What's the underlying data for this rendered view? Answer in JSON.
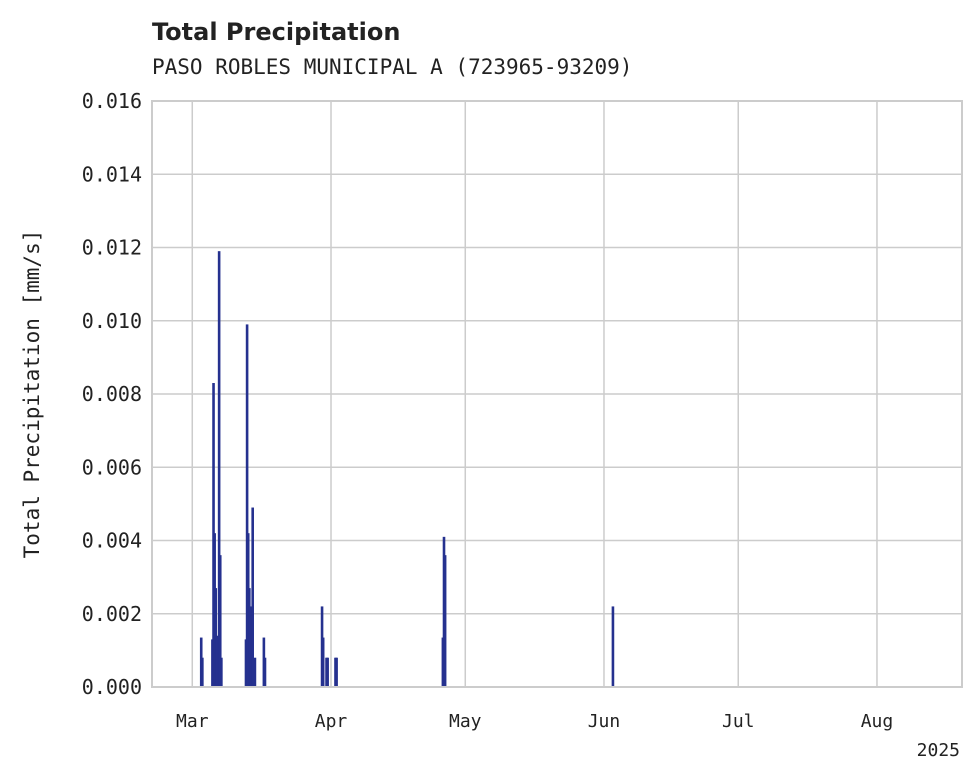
{
  "chart_data": {
    "type": "bar",
    "title": "Total Precipitation",
    "subtitle": "PASO ROBLES MUNICIPAL A (723965-93209)",
    "ylabel": "Total Precipitation [mm/s]",
    "xlabel": "",
    "ylim": [
      0,
      0.016
    ],
    "yticks": [
      "0.000",
      "0.002",
      "0.004",
      "0.006",
      "0.008",
      "0.010",
      "0.012",
      "0.014",
      "0.016"
    ],
    "xlim": [
      "2025-02-20",
      "2025-08-20"
    ],
    "xticks": [
      {
        "date": "2025-03-01",
        "label": "Mar"
      },
      {
        "date": "2025-04-01",
        "label": "Apr"
      },
      {
        "date": "2025-05-01",
        "label": "May"
      },
      {
        "date": "2025-06-01",
        "label": "Jun"
      },
      {
        "date": "2025-07-01",
        "label": "Jul"
      },
      {
        "date": "2025-08-01",
        "label": "Aug"
      }
    ],
    "year_label": "2025",
    "grid": true,
    "color": "#25318f",
    "points": [
      {
        "t": "2025-03-03T00:00",
        "v": 0.00135
      },
      {
        "t": "2025-03-03T06:00",
        "v": 0.0008
      },
      {
        "t": "2025-03-05T12:00",
        "v": 0.0013
      },
      {
        "t": "2025-03-05T18:00",
        "v": 0.0083
      },
      {
        "t": "2025-03-06T00:00",
        "v": 0.0042
      },
      {
        "t": "2025-03-06T06:00",
        "v": 0.0027
      },
      {
        "t": "2025-03-06T12:00",
        "v": 0.0014
      },
      {
        "t": "2025-03-07T00:00",
        "v": 0.0119
      },
      {
        "t": "2025-03-07T06:00",
        "v": 0.0036
      },
      {
        "t": "2025-03-07T12:00",
        "v": 0.0008
      },
      {
        "t": "2025-03-13T00:00",
        "v": 0.0013
      },
      {
        "t": "2025-03-13T06:00",
        "v": 0.0099
      },
      {
        "t": "2025-03-13T12:00",
        "v": 0.0042
      },
      {
        "t": "2025-03-13T18:00",
        "v": 0.0027
      },
      {
        "t": "2025-03-14T00:00",
        "v": 0.0008
      },
      {
        "t": "2025-03-14T06:00",
        "v": 0.0022
      },
      {
        "t": "2025-03-14T12:00",
        "v": 0.0049
      },
      {
        "t": "2025-03-15T00:00",
        "v": 0.0008
      },
      {
        "t": "2025-03-17T00:00",
        "v": 0.00135
      },
      {
        "t": "2025-03-17T06:00",
        "v": 0.0008
      },
      {
        "t": "2025-03-30T00:00",
        "v": 0.0022
      },
      {
        "t": "2025-03-30T06:00",
        "v": 0.00135
      },
      {
        "t": "2025-03-31T00:00",
        "v": 0.0008
      },
      {
        "t": "2025-03-31T06:00",
        "v": 0.0008
      },
      {
        "t": "2025-04-02T00:00",
        "v": 0.0008
      },
      {
        "t": "2025-04-02T06:00",
        "v": 0.0008
      },
      {
        "t": "2025-04-26T00:00",
        "v": 0.00135
      },
      {
        "t": "2025-04-26T06:00",
        "v": 0.0041
      },
      {
        "t": "2025-04-26T12:00",
        "v": 0.0036
      },
      {
        "t": "2025-06-03T00:00",
        "v": 0.0022
      }
    ]
  }
}
